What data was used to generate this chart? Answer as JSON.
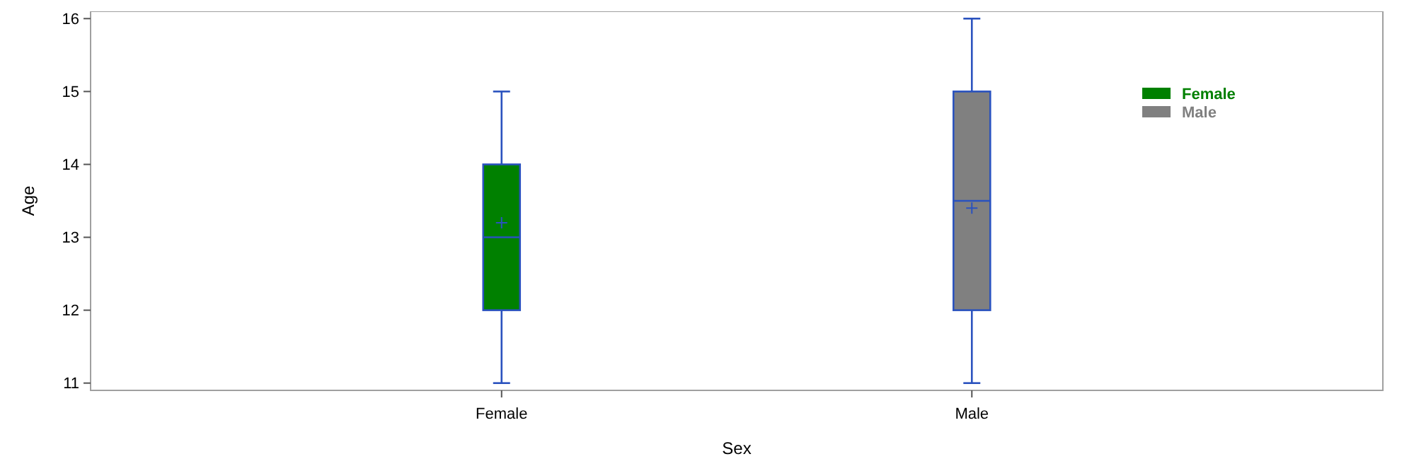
{
  "chart_data": {
    "type": "box",
    "xlabel": "Sex",
    "ylabel": "Age",
    "categories": [
      "Female",
      "Male"
    ],
    "series": [
      {
        "name": "Female",
        "color": "#008000",
        "boxes": [
          {
            "low": 11,
            "q1": 12,
            "median": 13,
            "q3": 14,
            "high": 15,
            "mean": 13.2
          },
          null
        ]
      },
      {
        "name": "Male",
        "color": "#808080",
        "boxes": [
          null,
          {
            "low": 11,
            "q1": 12,
            "median": 13.5,
            "q3": 15,
            "high": 16,
            "mean": 13.4
          }
        ]
      }
    ],
    "ylim": [
      10.9,
      16.1
    ],
    "yticks": [
      11,
      12,
      13,
      14,
      15,
      16
    ],
    "legend": "top right",
    "marker": "cross"
  }
}
